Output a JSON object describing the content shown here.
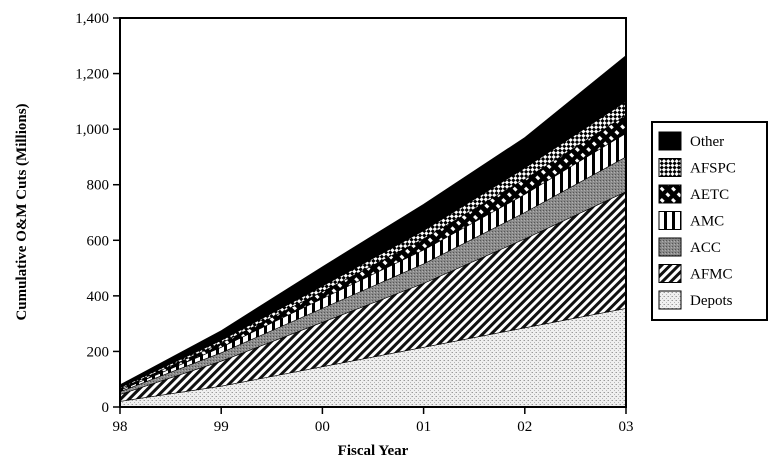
{
  "chart_data": {
    "type": "area",
    "stacked": true,
    "title": "",
    "xlabel": "Fiscal Year",
    "ylabel": "Cumulative O&M Cuts (Millions)",
    "categories": [
      "98",
      "99",
      "00",
      "01",
      "02",
      "03"
    ],
    "ylim": [
      0,
      1400
    ],
    "yticks": [
      0,
      200,
      400,
      600,
      800,
      1000,
      1200,
      1400
    ],
    "ytick_labels": [
      "0",
      "200",
      "400",
      "600",
      "800",
      "1,000",
      "1,200",
      "1,400"
    ],
    "grid": false,
    "legend_position": "right",
    "series": [
      {
        "name": "Depots",
        "values": [
          20,
          75,
          145,
          215,
          285,
          355
        ],
        "pattern": "dots",
        "color": "#d8d8d8"
      },
      {
        "name": "AFMC",
        "values": [
          25,
          90,
          160,
          230,
          320,
          420
        ],
        "pattern": "diagonal-lines",
        "color": "#000000"
      },
      {
        "name": "ACC",
        "values": [
          10,
          30,
          50,
          70,
          95,
          125
        ],
        "pattern": "fine-gray",
        "color": "#888888"
      },
      {
        "name": "AMC",
        "values": [
          5,
          20,
          35,
          50,
          65,
          85
        ],
        "pattern": "vertical-bars",
        "color": "#000000"
      },
      {
        "name": "AETC",
        "values": [
          5,
          15,
          25,
          40,
          55,
          65
        ],
        "pattern": "dashes",
        "color": "#000000"
      },
      {
        "name": "AFSPC",
        "values": [
          5,
          10,
          20,
          30,
          40,
          50
        ],
        "pattern": "checker",
        "color": "#000000"
      },
      {
        "name": "Other",
        "values": [
          10,
          35,
          70,
          95,
          110,
          165
        ],
        "pattern": "solid",
        "color": "#000000"
      }
    ],
    "legend_order": [
      "Other",
      "AFSPC",
      "AETC",
      "AMC",
      "ACC",
      "AFMC",
      "Depots"
    ]
  }
}
